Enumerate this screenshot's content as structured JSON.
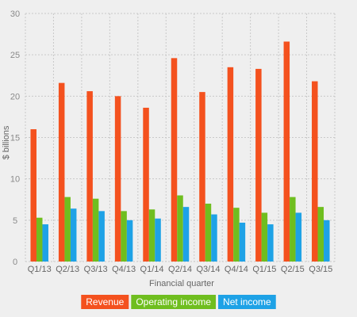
{
  "chart_data": {
    "type": "bar",
    "title": "",
    "xlabel": "Financial quarter",
    "ylabel": "$ billions",
    "ylim": [
      0,
      30
    ],
    "yticks": [
      0,
      5,
      10,
      15,
      20,
      25,
      30
    ],
    "grid": true,
    "legend_position": "bottom",
    "categories": [
      "Q1/13",
      "Q2/13",
      "Q3/13",
      "Q4/13",
      "Q1/14",
      "Q2/14",
      "Q3/14",
      "Q4/14",
      "Q1/15",
      "Q2/15",
      "Q3/15"
    ],
    "series": [
      {
        "name": "Revenue",
        "color": "#f4511e",
        "values": [
          16.0,
          21.6,
          20.6,
          20.0,
          18.6,
          24.6,
          20.5,
          23.5,
          23.3,
          26.6,
          21.8
        ]
      },
      {
        "name": "Operating income",
        "color": "#6fbe1f",
        "values": [
          5.3,
          7.8,
          7.6,
          6.1,
          6.3,
          8.0,
          7.0,
          6.5,
          5.9,
          7.8,
          6.6
        ]
      },
      {
        "name": "Net income",
        "color": "#1ea2e6",
        "values": [
          4.5,
          6.4,
          6.1,
          5.0,
          5.2,
          6.6,
          5.7,
          4.7,
          4.5,
          5.9,
          5.0
        ]
      }
    ]
  }
}
